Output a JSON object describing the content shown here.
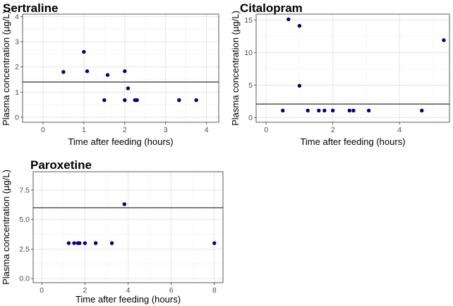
{
  "chart_data": [
    {
      "type": "scatter",
      "title": "Sertraline",
      "xlabel": "Time after feeding (hours)",
      "ylabel": "Plasma concentration (µg/L)",
      "xlim": [
        -0.5,
        4.3
      ],
      "ylim": [
        -0.2,
        4.1
      ],
      "xticks": [
        0,
        1,
        2,
        3,
        4
      ],
      "yticks": [
        0,
        1,
        2,
        3,
        4
      ],
      "xminor": [
        0.5,
        1.5,
        2.5,
        3.5
      ],
      "yminor": [
        0.5,
        1.5,
        2.5,
        3.5
      ],
      "tick_format": 0,
      "point_color": "#000080",
      "reference_line": 1.4,
      "x": [
        0.5,
        1.0,
        1.08,
        1.5,
        1.58,
        2.0,
        2.0,
        2.08,
        2.25,
        2.3,
        3.33,
        3.75
      ],
      "y": [
        1.8,
        2.6,
        1.83,
        0.68,
        1.68,
        1.83,
        0.68,
        1.15,
        0.68,
        0.68,
        0.68,
        0.68
      ]
    },
    {
      "type": "scatter",
      "title": "Citalopram",
      "xlabel": "Time after feeding (hours)",
      "ylabel": "Plasma concentration (µg/L)",
      "xlim": [
        -0.3,
        5.5
      ],
      "ylim": [
        -0.7,
        15.9
      ],
      "xticks": [
        0,
        2,
        4
      ],
      "yticks": [
        0,
        5,
        10,
        15
      ],
      "xminor": [
        1,
        3,
        5
      ],
      "yminor": [
        2.5,
        7.5,
        12.5
      ],
      "tick_format": 0,
      "point_color": "#000080",
      "reference_line": 2.1,
      "x": [
        0.5,
        0.67,
        1.0,
        1.0,
        1.25,
        1.58,
        1.75,
        2.0,
        2.5,
        2.62,
        3.08,
        4.67,
        5.33
      ],
      "y": [
        1.1,
        15.1,
        14.1,
        4.9,
        1.1,
        1.1,
        1.1,
        1.1,
        1.1,
        1.1,
        1.1,
        1.1,
        11.9
      ]
    },
    {
      "type": "scatter",
      "title": "Paroxetine",
      "xlabel": "Time after feeding (hours)",
      "ylabel": "Plasma concentration (µg/L)",
      "xlim": [
        -0.4,
        8.4
      ],
      "ylim": [
        -0.35,
        9.05
      ],
      "xticks": [
        0,
        2,
        4,
        6,
        8
      ],
      "yticks": [
        0,
        2.5,
        5,
        7.5
      ],
      "xminor": [
        1,
        3,
        5,
        7
      ],
      "yminor": [
        1.25,
        3.75,
        6.25,
        8.75
      ],
      "tick_format": 1,
      "point_color": "#000080",
      "reference_line": 6.0,
      "x": [
        1.25,
        1.5,
        1.67,
        1.75,
        2.0,
        2.5,
        3.25,
        3.83,
        8.0
      ],
      "y": [
        3.0,
        3.0,
        3.0,
        3.0,
        3.0,
        3.0,
        3.0,
        6.3,
        3.0
      ]
    }
  ]
}
